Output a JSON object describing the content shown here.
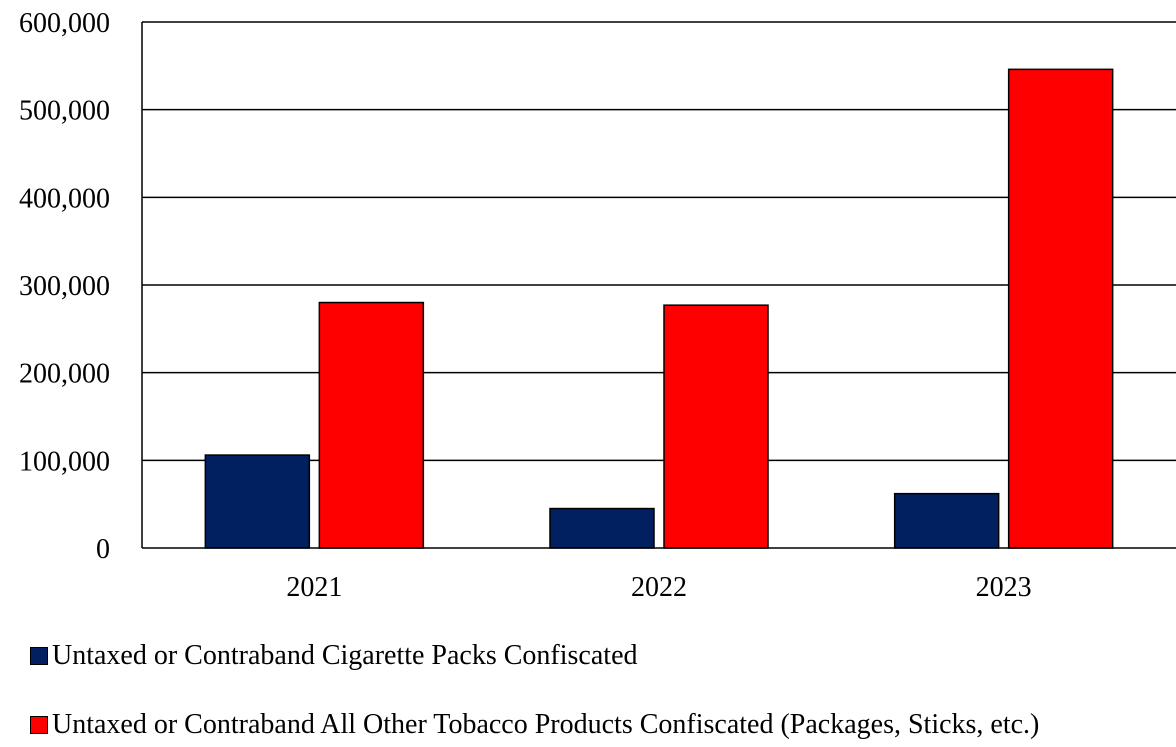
{
  "chart_data": {
    "type": "bar",
    "categories": [
      "2021",
      "2022",
      "2023"
    ],
    "series": [
      {
        "name": "Untaxed or Contraband Cigarette Packs Confiscated",
        "values": [
          106000,
          45000,
          62000
        ],
        "color": "#002060"
      },
      {
        "name": "Untaxed or Contraband All Other Tobacco Products Confiscated (Packages, Sticks, etc.)",
        "values": [
          280000,
          277000,
          546000
        ],
        "color": "#ff0000"
      }
    ],
    "ylim": [
      0,
      600000
    ],
    "yticks": [
      "0",
      "100,000",
      "200,000",
      "300,000",
      "400,000",
      "500,000",
      "600,000"
    ],
    "grid": true,
    "legend_position": "bottom"
  }
}
